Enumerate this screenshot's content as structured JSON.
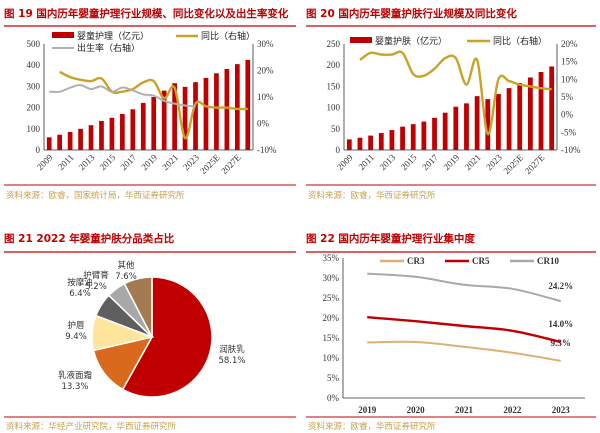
{
  "chart_data": [
    {
      "type": "bar",
      "title": "图 19 国内历年婴童护理行业规模、同比变化以及出生率变化",
      "source": "资料来源：欧睿，国家统计局，华西证券研究所",
      "categories": [
        "2009",
        "2010",
        "2011",
        "2012",
        "2013",
        "2014",
        "2015",
        "2016",
        "2017",
        "2018",
        "2019",
        "2020",
        "2021",
        "2022",
        "2023",
        "2024",
        "2025E",
        "2026E",
        "2027E",
        "2028E"
      ],
      "tick_labels": [
        "2009",
        "2011",
        "2013",
        "2015",
        "2017",
        "2019",
        "2021",
        "2023",
        "2025E",
        "2027E"
      ],
      "ylim": [
        0,
        500
      ],
      "yticks": [
        "0",
        "100",
        "200",
        "300",
        "400",
        "500"
      ],
      "y2lim": [
        -10,
        30
      ],
      "y2ticks": [
        "-10%",
        "0%",
        "10%",
        "20%",
        "30%"
      ],
      "series": [
        {
          "name": "婴童护理（亿元）",
          "kind": "bar",
          "axis": "left",
          "color": "#c00000",
          "values": [
            60,
            72,
            85,
            100,
            117,
            137,
            152,
            170,
            192,
            222,
            250,
            280,
            315,
            298,
            320,
            340,
            362,
            382,
            405,
            425
          ]
        },
        {
          "name": "同比（右轴）",
          "kind": "line",
          "axis": "right",
          "color": "#c9a227",
          "values": [
            null,
            19.5,
            17.5,
            16.5,
            16,
            17,
            12,
            12,
            13,
            15.5,
            16,
            9.5,
            13.5,
            -5.5,
            7.5,
            6.5,
            6,
            6,
            5.5,
            5.5
          ]
        },
        {
          "name": "出生率（右轴）",
          "kind": "line",
          "axis": "right",
          "color": "#b0b0b0",
          "values": [
            12,
            12,
            13.5,
            14.5,
            13,
            14,
            12,
            13.6,
            12.5,
            11,
            10.5,
            8.5,
            7.5,
            6.8,
            6.4,
            null,
            null,
            null,
            null,
            null
          ]
        }
      ]
    },
    {
      "type": "bar",
      "title": "图 20 国内历年婴童护肤行业规模及同比变化",
      "source": "资料来源：欧睿，华西证券研究所",
      "categories": [
        "2009",
        "2010",
        "2011",
        "2012",
        "2013",
        "2014",
        "2015",
        "2016",
        "2017",
        "2018",
        "2019",
        "2020",
        "2021",
        "2022",
        "2023",
        "2024",
        "2025E",
        "2026E",
        "2027E",
        "2028E"
      ],
      "tick_labels": [
        "2009",
        "2011",
        "2013",
        "2015",
        "2017",
        "2019",
        "2021",
        "2023",
        "2025E",
        "2027E"
      ],
      "ylim": [
        0,
        250
      ],
      "yticks": [
        "0",
        "50",
        "100",
        "150",
        "200",
        "250"
      ],
      "y2lim": [
        -10,
        20
      ],
      "y2ticks": [
        "-10%",
        "-5%",
        "0%",
        "5%",
        "10%",
        "15%",
        "20%"
      ],
      "series": [
        {
          "name": "婴童护肤（亿元）",
          "kind": "bar",
          "axis": "left",
          "color": "#c00000",
          "values": [
            25,
            29,
            34,
            40,
            47,
            55,
            61,
            67,
            76,
            88,
            102,
            110,
            127,
            120,
            132,
            146,
            158,
            171,
            184,
            197
          ]
        },
        {
          "name": "同比（右轴）",
          "kind": "line",
          "axis": "right",
          "color": "#c9a227",
          "values": [
            null,
            15.5,
            17.5,
            17,
            17,
            17.5,
            11.5,
            11,
            13,
            16,
            16,
            8.5,
            15.5,
            -5.5,
            10,
            9.5,
            8.5,
            8,
            7.5,
            7.2
          ]
        }
      ]
    },
    {
      "type": "pie",
      "title": "图 21 2022 年婴童护肤分品类占比",
      "source": "资料来源：华经产业研究院，华西证券研究所",
      "slices": [
        {
          "name": "润肤乳",
          "value": 58.1,
          "label": "58.1%",
          "color": "#c00000"
        },
        {
          "name": "乳液面霜",
          "value": 13.3,
          "label": "13.3%",
          "color": "#d9691c"
        },
        {
          "name": "护唇",
          "value": 9.4,
          "label": "9.4%",
          "color": "#fde59c"
        },
        {
          "name": "按摩油",
          "value": 6.4,
          "label": "6.4%",
          "color": "#5f5f5f"
        },
        {
          "name": "护臂膏",
          "value": 5.2,
          "label": "5.2%",
          "color": "#a8a8a8"
        },
        {
          "name": "其他",
          "value": 7.6,
          "label": "7.6%",
          "color": "#a47a50"
        }
      ]
    },
    {
      "type": "line",
      "title": "图 22 国内历年婴童护理行业集中度",
      "source": "资料来源：欧睿，华西证券研究所",
      "categories": [
        "2019",
        "2020",
        "2021",
        "2022",
        "2023"
      ],
      "ylim": [
        0,
        35
      ],
      "yticks": [
        "0%",
        "5%",
        "10%",
        "15%",
        "20%",
        "25%",
        "30%",
        "35%"
      ],
      "series": [
        {
          "name": "CR3",
          "color": "#e0b070",
          "values": [
            13.9,
            14.0,
            12.8,
            11.3,
            9.3
          ],
          "end_label": "9.3%"
        },
        {
          "name": "CR5",
          "color": "#c00000",
          "values": [
            20.2,
            19.2,
            18.0,
            16.8,
            14.0
          ],
          "end_label": "14.0%"
        },
        {
          "name": "CR10",
          "color": "#a9a9a9",
          "values": [
            31.1,
            30.3,
            28.3,
            27.3,
            24.2
          ],
          "end_label": "24.2%"
        }
      ]
    }
  ]
}
